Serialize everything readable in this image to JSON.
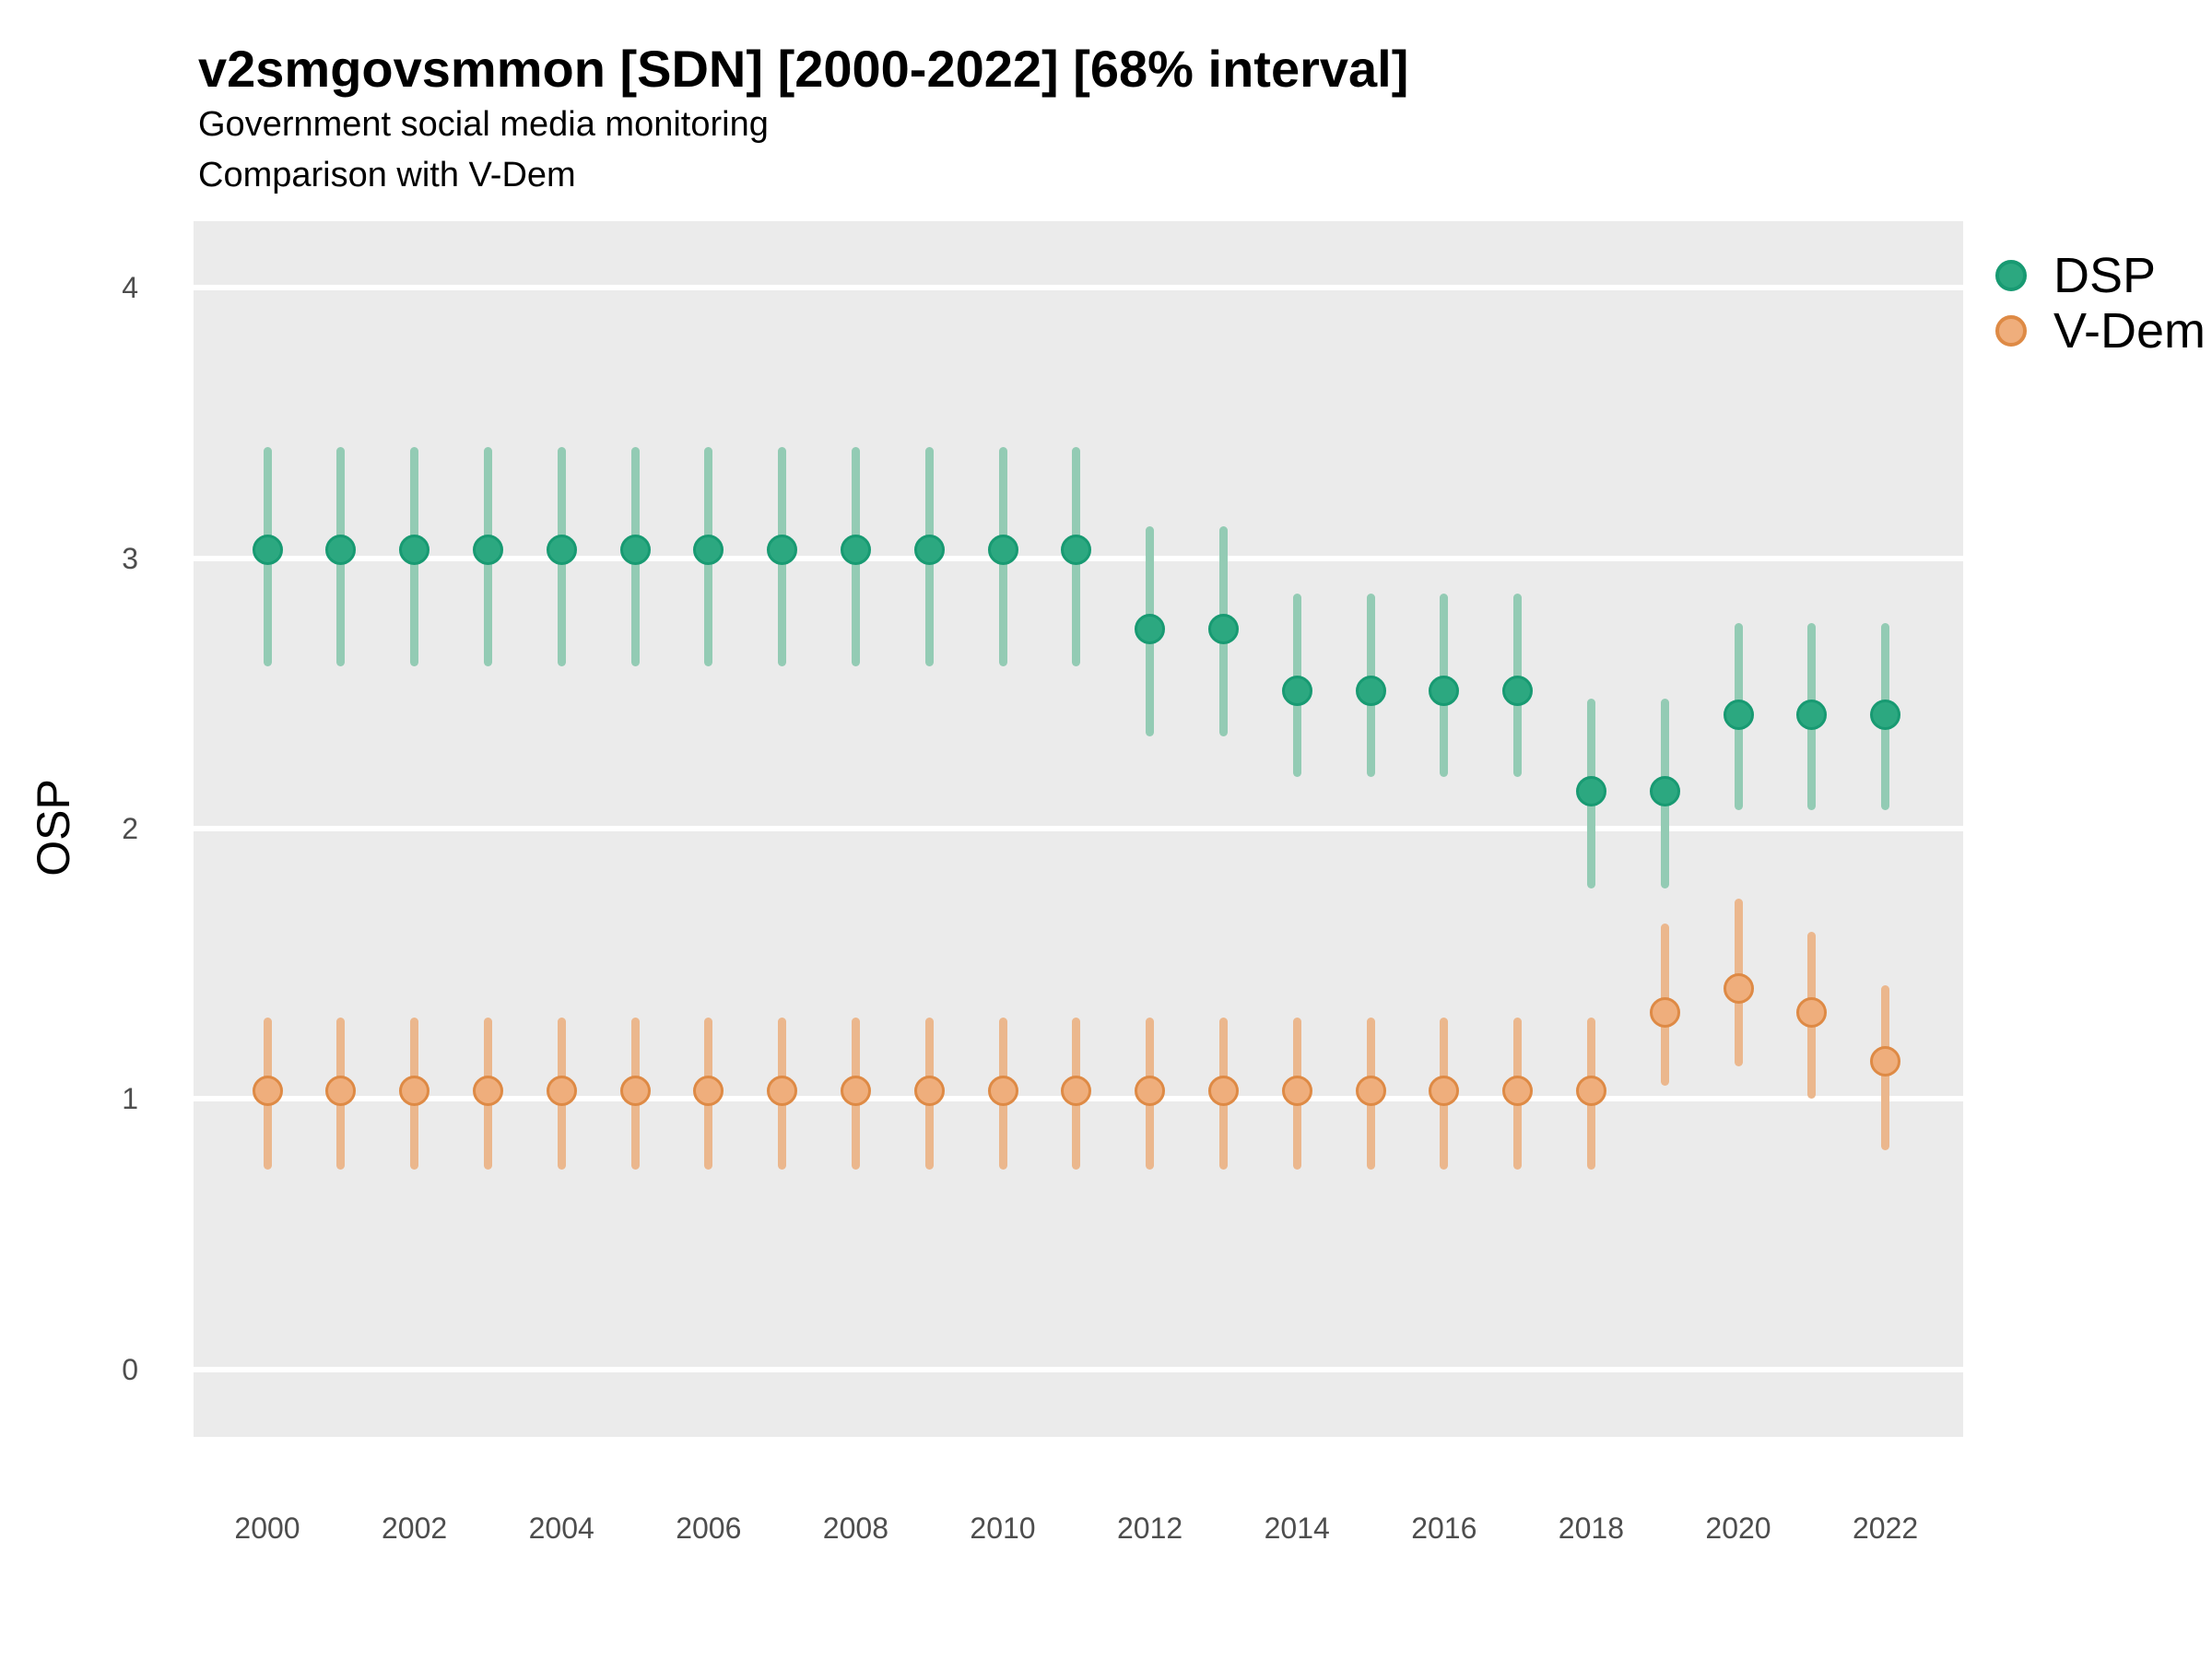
{
  "chart_data": {
    "type": "scatter",
    "title": "v2smgovsmmon [SDN] [2000-2022] [68% interval]",
    "subtitle": [
      "Government social media monitoring",
      "Comparison with V-Dem"
    ],
    "ylabel": "OSP",
    "xlabel": "",
    "ylim": [
      0,
      4
    ],
    "y_ticks": [
      4,
      3,
      2,
      1,
      0
    ],
    "x_ticks": [
      2000,
      2002,
      2004,
      2006,
      2008,
      2010,
      2012,
      2014,
      2016,
      2018,
      2020,
      2022
    ],
    "x_range": [
      2000,
      2022
    ],
    "interval_label": "68% interval",
    "grid": "on",
    "legend_position": "right",
    "colors": {
      "panel_bg": "#EBEBEB",
      "gridline": "#FFFFFF",
      "tick_label": "#4D4D4D",
      "text": "#000000"
    },
    "series": [
      {
        "name": "DSP",
        "point_fill": "#2CA880",
        "point_stroke": "#189A72",
        "bar_color": "#93CBB4",
        "points": [
          {
            "year": 2000,
            "est": 3.03,
            "lo": 2.6,
            "hi": 3.41
          },
          {
            "year": 2001,
            "est": 3.03,
            "lo": 2.6,
            "hi": 3.41
          },
          {
            "year": 2002,
            "est": 3.03,
            "lo": 2.6,
            "hi": 3.41
          },
          {
            "year": 2003,
            "est": 3.03,
            "lo": 2.6,
            "hi": 3.41
          },
          {
            "year": 2004,
            "est": 3.03,
            "lo": 2.6,
            "hi": 3.41
          },
          {
            "year": 2005,
            "est": 3.03,
            "lo": 2.6,
            "hi": 3.41
          },
          {
            "year": 2006,
            "est": 3.03,
            "lo": 2.6,
            "hi": 3.41
          },
          {
            "year": 2007,
            "est": 3.03,
            "lo": 2.6,
            "hi": 3.41
          },
          {
            "year": 2008,
            "est": 3.03,
            "lo": 2.6,
            "hi": 3.41
          },
          {
            "year": 2009,
            "est": 3.03,
            "lo": 2.6,
            "hi": 3.41
          },
          {
            "year": 2010,
            "est": 3.03,
            "lo": 2.6,
            "hi": 3.41
          },
          {
            "year": 2011,
            "est": 3.03,
            "lo": 2.6,
            "hi": 3.41
          },
          {
            "year": 2012,
            "est": 2.74,
            "lo": 2.34,
            "hi": 3.12
          },
          {
            "year": 2013,
            "est": 2.74,
            "lo": 2.34,
            "hi": 3.12
          },
          {
            "year": 2014,
            "est": 2.51,
            "lo": 2.19,
            "hi": 2.87
          },
          {
            "year": 2015,
            "est": 2.51,
            "lo": 2.19,
            "hi": 2.87
          },
          {
            "year": 2016,
            "est": 2.51,
            "lo": 2.19,
            "hi": 2.87
          },
          {
            "year": 2017,
            "est": 2.51,
            "lo": 2.19,
            "hi": 2.87
          },
          {
            "year": 2018,
            "est": 2.14,
            "lo": 1.78,
            "hi": 2.48
          },
          {
            "year": 2019,
            "est": 2.14,
            "lo": 1.78,
            "hi": 2.48
          },
          {
            "year": 2020,
            "est": 2.42,
            "lo": 2.07,
            "hi": 2.76
          },
          {
            "year": 2021,
            "est": 2.42,
            "lo": 2.07,
            "hi": 2.76
          },
          {
            "year": 2022,
            "est": 2.42,
            "lo": 2.07,
            "hi": 2.76
          }
        ]
      },
      {
        "name": "V-Dem",
        "point_fill": "#EFAE7C",
        "point_stroke": "#DE8A45",
        "bar_color": "#EBB78D",
        "points": [
          {
            "year": 2000,
            "est": 1.03,
            "lo": 0.74,
            "hi": 1.3
          },
          {
            "year": 2001,
            "est": 1.03,
            "lo": 0.74,
            "hi": 1.3
          },
          {
            "year": 2002,
            "est": 1.03,
            "lo": 0.74,
            "hi": 1.3
          },
          {
            "year": 2003,
            "est": 1.03,
            "lo": 0.74,
            "hi": 1.3
          },
          {
            "year": 2004,
            "est": 1.03,
            "lo": 0.74,
            "hi": 1.3
          },
          {
            "year": 2005,
            "est": 1.03,
            "lo": 0.74,
            "hi": 1.3
          },
          {
            "year": 2006,
            "est": 1.03,
            "lo": 0.74,
            "hi": 1.3
          },
          {
            "year": 2007,
            "est": 1.03,
            "lo": 0.74,
            "hi": 1.3
          },
          {
            "year": 2008,
            "est": 1.03,
            "lo": 0.74,
            "hi": 1.3
          },
          {
            "year": 2009,
            "est": 1.03,
            "lo": 0.74,
            "hi": 1.3
          },
          {
            "year": 2010,
            "est": 1.03,
            "lo": 0.74,
            "hi": 1.3
          },
          {
            "year": 2011,
            "est": 1.03,
            "lo": 0.74,
            "hi": 1.3
          },
          {
            "year": 2012,
            "est": 1.03,
            "lo": 0.74,
            "hi": 1.3
          },
          {
            "year": 2013,
            "est": 1.03,
            "lo": 0.74,
            "hi": 1.3
          },
          {
            "year": 2014,
            "est": 1.03,
            "lo": 0.74,
            "hi": 1.3
          },
          {
            "year": 2015,
            "est": 1.03,
            "lo": 0.74,
            "hi": 1.3
          },
          {
            "year": 2016,
            "est": 1.03,
            "lo": 0.74,
            "hi": 1.3
          },
          {
            "year": 2017,
            "est": 1.03,
            "lo": 0.74,
            "hi": 1.3
          },
          {
            "year": 2018,
            "est": 1.03,
            "lo": 0.74,
            "hi": 1.3
          },
          {
            "year": 2019,
            "est": 1.32,
            "lo": 1.05,
            "hi": 1.65
          },
          {
            "year": 2020,
            "est": 1.41,
            "lo": 1.12,
            "hi": 1.74
          },
          {
            "year": 2021,
            "est": 1.32,
            "lo": 1.0,
            "hi": 1.62
          },
          {
            "year": 2022,
            "est": 1.14,
            "lo": 0.81,
            "hi": 1.42
          }
        ]
      }
    ]
  }
}
